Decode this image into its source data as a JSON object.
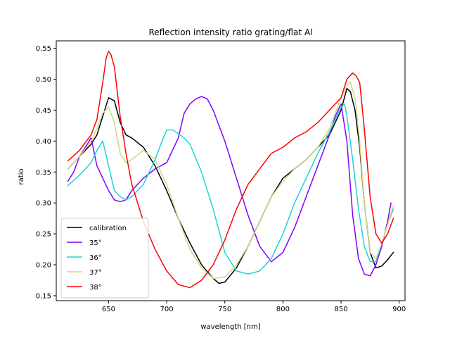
{
  "chart_data": {
    "type": "line",
    "title": "Reflection intensity ratio grating/flat Al",
    "xlabel": "wavelength [nm]",
    "ylabel": "ratio",
    "xlim": [
      605,
      905
    ],
    "ylim": [
      0.142,
      0.562
    ],
    "xticks": [
      650,
      700,
      750,
      800,
      850,
      900
    ],
    "yticks": [
      0.15,
      0.2,
      0.25,
      0.3,
      0.35,
      0.4,
      0.45,
      0.5,
      0.55
    ],
    "ytick_labels": [
      "0.15",
      "0.20",
      "0.25",
      "0.30",
      "0.35",
      "0.40",
      "0.45",
      "0.50",
      "0.55"
    ],
    "grid": false,
    "legend_position": "lower-left",
    "series": [
      {
        "name": "calibration",
        "color": "#000000",
        "x": [
          615,
          625,
          635,
          640,
          645,
          650,
          655,
          660,
          665,
          670,
          680,
          690,
          700,
          710,
          720,
          730,
          740,
          745,
          750,
          760,
          770,
          780,
          790,
          800,
          810,
          820,
          830,
          840,
          850,
          855,
          858,
          862,
          866,
          870,
          875,
          880,
          885,
          890,
          895
        ],
        "y": [
          0.355,
          0.375,
          0.395,
          0.41,
          0.44,
          0.47,
          0.465,
          0.43,
          0.41,
          0.405,
          0.39,
          0.36,
          0.32,
          0.275,
          0.235,
          0.2,
          0.178,
          0.17,
          0.172,
          0.195,
          0.23,
          0.27,
          0.31,
          0.34,
          0.355,
          0.37,
          0.39,
          0.41,
          0.45,
          0.485,
          0.48,
          0.45,
          0.39,
          0.3,
          0.22,
          0.195,
          0.198,
          0.208,
          0.22
        ]
      },
      {
        "name": "35°",
        "color": "#8000ff",
        "x": [
          615,
          620,
          625,
          630,
          635,
          640,
          645,
          650,
          655,
          660,
          665,
          670,
          680,
          690,
          700,
          710,
          715,
          720,
          725,
          730,
          735,
          740,
          745,
          750,
          760,
          770,
          780,
          790,
          800,
          810,
          820,
          830,
          840,
          845,
          850,
          855,
          860,
          865,
          870,
          875,
          880,
          885,
          890,
          893
        ],
        "y": [
          0.335,
          0.35,
          0.375,
          0.39,
          0.405,
          0.36,
          0.34,
          0.32,
          0.305,
          0.302,
          0.305,
          0.32,
          0.34,
          0.355,
          0.365,
          0.405,
          0.445,
          0.46,
          0.468,
          0.472,
          0.468,
          0.45,
          0.425,
          0.4,
          0.34,
          0.28,
          0.23,
          0.205,
          0.22,
          0.26,
          0.31,
          0.36,
          0.41,
          0.44,
          0.46,
          0.4,
          0.28,
          0.21,
          0.185,
          0.182,
          0.2,
          0.23,
          0.27,
          0.3
        ]
      },
      {
        "name": "36°",
        "color": "#1ad6d6",
        "x": [
          615,
          625,
          635,
          640,
          645,
          650,
          655,
          660,
          665,
          670,
          680,
          690,
          695,
          700,
          705,
          710,
          715,
          720,
          730,
          740,
          750,
          760,
          770,
          780,
          790,
          800,
          810,
          820,
          830,
          840,
          845,
          850,
          853,
          855,
          860,
          865,
          870,
          875,
          880,
          885,
          890,
          895
        ],
        "y": [
          0.328,
          0.345,
          0.365,
          0.385,
          0.4,
          0.36,
          0.32,
          0.31,
          0.305,
          0.31,
          0.33,
          0.37,
          0.395,
          0.418,
          0.418,
          0.412,
          0.405,
          0.395,
          0.35,
          0.29,
          0.22,
          0.19,
          0.185,
          0.19,
          0.21,
          0.25,
          0.3,
          0.34,
          0.38,
          0.415,
          0.435,
          0.455,
          0.46,
          0.44,
          0.37,
          0.29,
          0.23,
          0.205,
          0.205,
          0.235,
          0.265,
          0.29
        ]
      },
      {
        "name": "37°",
        "color": "#d1d681",
        "x": [
          615,
          625,
          635,
          640,
          645,
          650,
          655,
          660,
          665,
          670,
          680,
          690,
          700,
          710,
          720,
          730,
          740,
          750,
          760,
          770,
          780,
          790,
          800,
          810,
          820,
          830,
          840,
          845,
          850,
          855,
          858,
          862,
          866,
          870,
          875,
          880,
          885,
          890,
          895
        ],
        "y": [
          0.355,
          0.375,
          0.4,
          0.42,
          0.445,
          0.455,
          0.43,
          0.38,
          0.365,
          0.37,
          0.385,
          0.37,
          0.33,
          0.275,
          0.225,
          0.195,
          0.178,
          0.18,
          0.2,
          0.23,
          0.27,
          0.31,
          0.335,
          0.355,
          0.37,
          0.39,
          0.42,
          0.445,
          0.47,
          0.49,
          0.495,
          0.47,
          0.4,
          0.3,
          0.22,
          0.21,
          0.235,
          0.265,
          0.295
        ]
      },
      {
        "name": "38°",
        "color": "#ff0000",
        "x": [
          615,
          625,
          635,
          640,
          645,
          648,
          650,
          652,
          655,
          660,
          665,
          670,
          680,
          690,
          700,
          710,
          720,
          730,
          740,
          750,
          760,
          770,
          780,
          790,
          800,
          810,
          820,
          830,
          840,
          850,
          855,
          860,
          863,
          866,
          870,
          875,
          880,
          885,
          890,
          895
        ],
        "y": [
          0.368,
          0.385,
          0.41,
          0.435,
          0.495,
          0.535,
          0.545,
          0.54,
          0.52,
          0.44,
          0.38,
          0.33,
          0.27,
          0.225,
          0.19,
          0.168,
          0.163,
          0.175,
          0.2,
          0.24,
          0.29,
          0.33,
          0.355,
          0.38,
          0.39,
          0.405,
          0.415,
          0.43,
          0.45,
          0.47,
          0.5,
          0.51,
          0.505,
          0.495,
          0.42,
          0.31,
          0.25,
          0.235,
          0.25,
          0.275
        ]
      }
    ]
  }
}
